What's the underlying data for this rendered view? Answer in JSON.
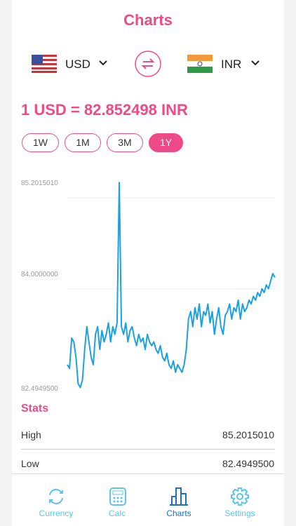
{
  "header": {
    "title": "Charts"
  },
  "from_currency": {
    "code": "USD"
  },
  "to_currency": {
    "code": "INR"
  },
  "rate": "1 USD = 82.852498 INR",
  "periods": [
    "1W",
    "1M",
    "3M",
    "1Y"
  ],
  "chart_data": {
    "type": "line",
    "color": "#1ba0e2",
    "ylim": [
      82.49495,
      85.201501
    ],
    "yticks": [
      {
        "value": 85.201501,
        "label": "85.2015010"
      },
      {
        "value": 84,
        "label": "84.0000000"
      },
      {
        "value": 82.49495,
        "label": "82.4949500"
      }
    ],
    "values": [
      82.8,
      82.75,
      83.15,
      83.1,
      82.9,
      82.55,
      82.5,
      82.6,
      83.0,
      83.3,
      83.1,
      82.9,
      82.8,
      83.2,
      83.3,
      83.0,
      83.25,
      83.1,
      83.2,
      83.35,
      83.1,
      83.3,
      83.2,
      83.35,
      85.2,
      83.3,
      83.2,
      83.35,
      83.1,
      83.25,
      83.3,
      83.15,
      83.05,
      83.2,
      83.1,
      83.15,
      83.0,
      83.2,
      83.1,
      83.05,
      83.1,
      83.0,
      82.95,
      83.05,
      82.9,
      82.85,
      82.95,
      82.8,
      82.75,
      82.85,
      82.7,
      82.8,
      82.75,
      82.7,
      82.8,
      83.0,
      83.4,
      83.5,
      83.3,
      83.55,
      83.4,
      83.6,
      83.3,
      83.5,
      83.45,
      83.6,
      83.35,
      83.5,
      83.2,
      83.4,
      83.55,
      83.3,
      83.2,
      83.45,
      83.5,
      83.6,
      83.4,
      83.55,
      83.5,
      83.65,
      83.4,
      83.6,
      83.5,
      83.55,
      83.65,
      83.6,
      83.7,
      83.65,
      83.75,
      83.7,
      83.8,
      83.75,
      83.85,
      83.8,
      83.9,
      84.0,
      83.95
    ]
  },
  "stats": {
    "title": "Stats",
    "rows": [
      [
        "High",
        "85.2015010"
      ],
      [
        "Low",
        "82.4949500"
      ]
    ]
  },
  "tabs": [
    "Currency",
    "Calc",
    "Charts",
    "Settings"
  ]
}
